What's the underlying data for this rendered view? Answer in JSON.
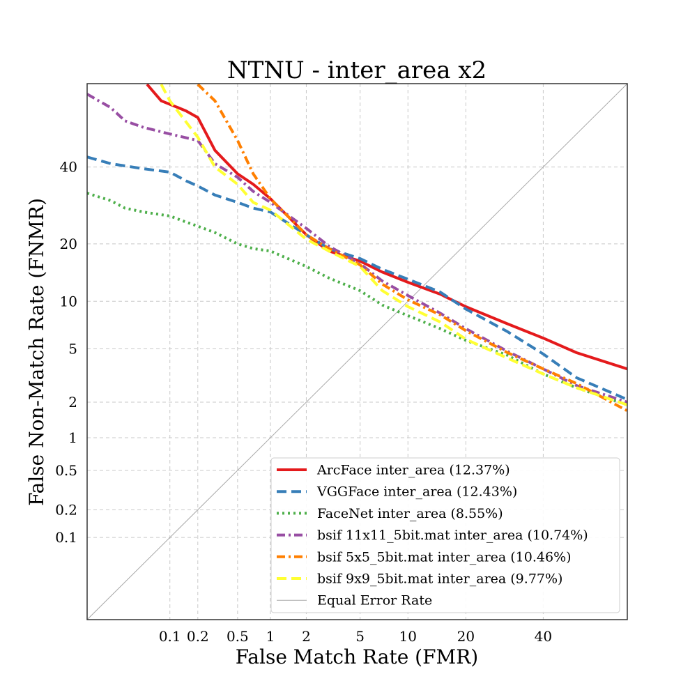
{
  "chart_data": {
    "type": "line",
    "title": "NTNU - inter_area x2",
    "xlabel": "False Match Rate (FMR)",
    "ylabel": "False Non-Match Rate (FNMR)",
    "scale": "probit",
    "xlim": [
      0.01,
      65
    ],
    "ylim": [
      0.01,
      65
    ],
    "x_ticks": [
      0.1,
      0.2,
      0.5,
      1,
      2,
      5,
      10,
      20,
      40
    ],
    "x_tick_labels": [
      "0.1",
      "0.2",
      "0.5",
      "1",
      "2",
      "5",
      "10",
      "20",
      "40"
    ],
    "y_ticks": [
      0.1,
      0.2,
      0.5,
      1,
      2,
      5,
      10,
      20,
      40
    ],
    "y_tick_labels": [
      "0.1",
      "0.2",
      "0.5",
      "1",
      "2",
      "5",
      "10",
      "20",
      "40"
    ],
    "grid": true,
    "legend_position": "lower-right",
    "series": [
      {
        "name": "ArcFace inter_area (12.37%)",
        "color": "#e41a1c",
        "dash": "solid",
        "points": [
          [
            0.055,
            64.8
          ],
          [
            0.08,
            60
          ],
          [
            0.1,
            59
          ],
          [
            0.15,
            57
          ],
          [
            0.2,
            55
          ],
          [
            0.3,
            45
          ],
          [
            0.5,
            38
          ],
          [
            0.7,
            35
          ],
          [
            1,
            31
          ],
          [
            2,
            22
          ],
          [
            3,
            18.5
          ],
          [
            5,
            16.5
          ],
          [
            7,
            14.5
          ],
          [
            10,
            12.8
          ],
          [
            15,
            11
          ],
          [
            20,
            9.3
          ],
          [
            30,
            7.3
          ],
          [
            40,
            5.9
          ],
          [
            50,
            4.7
          ],
          [
            65,
            3.6
          ]
        ]
      },
      {
        "name": "VGGFace inter_area (12.43%)",
        "color": "#377eb8",
        "dash": "dashed",
        "points": [
          [
            0.01,
            43
          ],
          [
            0.02,
            41
          ],
          [
            0.05,
            39.5
          ],
          [
            0.1,
            38.5
          ],
          [
            0.15,
            36
          ],
          [
            0.2,
            34.5
          ],
          [
            0.3,
            32
          ],
          [
            0.5,
            30
          ],
          [
            0.7,
            28.5
          ],
          [
            1,
            27.5
          ],
          [
            2,
            22
          ],
          [
            3,
            19
          ],
          [
            5,
            17
          ],
          [
            7,
            15
          ],
          [
            10,
            13.3
          ],
          [
            15,
            11.3
          ],
          [
            20,
            9
          ],
          [
            30,
            6.5
          ],
          [
            40,
            4.6
          ],
          [
            50,
            3.1
          ],
          [
            65,
            2.1
          ]
        ]
      },
      {
        "name": "FaceNet inter_area (8.55%)",
        "color": "#4daf4a",
        "dash": "dotted",
        "points": [
          [
            0.01,
            32.5
          ],
          [
            0.02,
            30.5
          ],
          [
            0.03,
            28.5
          ],
          [
            0.05,
            27.5
          ],
          [
            0.1,
            26.5
          ],
          [
            0.15,
            25
          ],
          [
            0.2,
            24
          ],
          [
            0.3,
            22.5
          ],
          [
            0.5,
            20
          ],
          [
            0.7,
            19
          ],
          [
            1,
            18.5
          ],
          [
            2,
            15.5
          ],
          [
            3,
            13.5
          ],
          [
            5,
            11.5
          ],
          [
            7,
            9.5
          ],
          [
            10,
            8.2
          ],
          [
            15,
            6.8
          ],
          [
            20,
            5.7
          ],
          [
            30,
            4.5
          ],
          [
            40,
            3.3
          ],
          [
            50,
            2.6
          ],
          [
            65,
            1.9
          ]
        ]
      },
      {
        "name": "bsif 11x11_5bit.mat inter_area (10.74%)",
        "color": "#984ea3",
        "dash": "dashdot",
        "points": [
          [
            0.01,
            62
          ],
          [
            0.02,
            58
          ],
          [
            0.03,
            54
          ],
          [
            0.05,
            52
          ],
          [
            0.1,
            50
          ],
          [
            0.2,
            48
          ],
          [
            0.3,
            41
          ],
          [
            0.5,
            37
          ],
          [
            0.7,
            33
          ],
          [
            1,
            30
          ],
          [
            2,
            23.5
          ],
          [
            3,
            19.5
          ],
          [
            5,
            16
          ],
          [
            7,
            13
          ],
          [
            10,
            10.8
          ],
          [
            15,
            8.5
          ],
          [
            20,
            6.8
          ],
          [
            30,
            4.8
          ],
          [
            40,
            3.6
          ],
          [
            50,
            2.7
          ],
          [
            65,
            2
          ]
        ]
      },
      {
        "name": "bsif 5x5_5bit.mat inter_area (10.46%)",
        "color": "#ff7f00",
        "dash": "dashdot",
        "points": [
          [
            0.2,
            64.8
          ],
          [
            0.3,
            60
          ],
          [
            0.5,
            48
          ],
          [
            0.7,
            38
          ],
          [
            1,
            31
          ],
          [
            2,
            22
          ],
          [
            3,
            19
          ],
          [
            5,
            15.8
          ],
          [
            7,
            12.5
          ],
          [
            10,
            10.2
          ],
          [
            15,
            8.3
          ],
          [
            20,
            6.6
          ],
          [
            30,
            4.7
          ],
          [
            40,
            3.6
          ],
          [
            50,
            2.8
          ],
          [
            65,
            1.7
          ]
        ]
      },
      {
        "name": "bsif 9x9_5bit.mat inter_area (9.77%)",
        "color": "#ffff33",
        "dash": "dashed",
        "points": [
          [
            0.08,
            64.8
          ],
          [
            0.1,
            60
          ],
          [
            0.2,
            49
          ],
          [
            0.3,
            40
          ],
          [
            0.5,
            35
          ],
          [
            0.7,
            30
          ],
          [
            1,
            28
          ],
          [
            2,
            21
          ],
          [
            3,
            18.5
          ],
          [
            5,
            15.5
          ],
          [
            7,
            11.5
          ],
          [
            10,
            9.3
          ],
          [
            15,
            7.5
          ],
          [
            20,
            5.8
          ],
          [
            30,
            4.3
          ],
          [
            40,
            3.3
          ],
          [
            50,
            2.6
          ],
          [
            65,
            1.9
          ]
        ]
      },
      {
        "name": "Equal Error Rate",
        "color": "#a9a9a9",
        "dash": "thin",
        "points": [
          [
            0.01,
            0.01
          ],
          [
            65,
            65
          ]
        ]
      }
    ]
  }
}
